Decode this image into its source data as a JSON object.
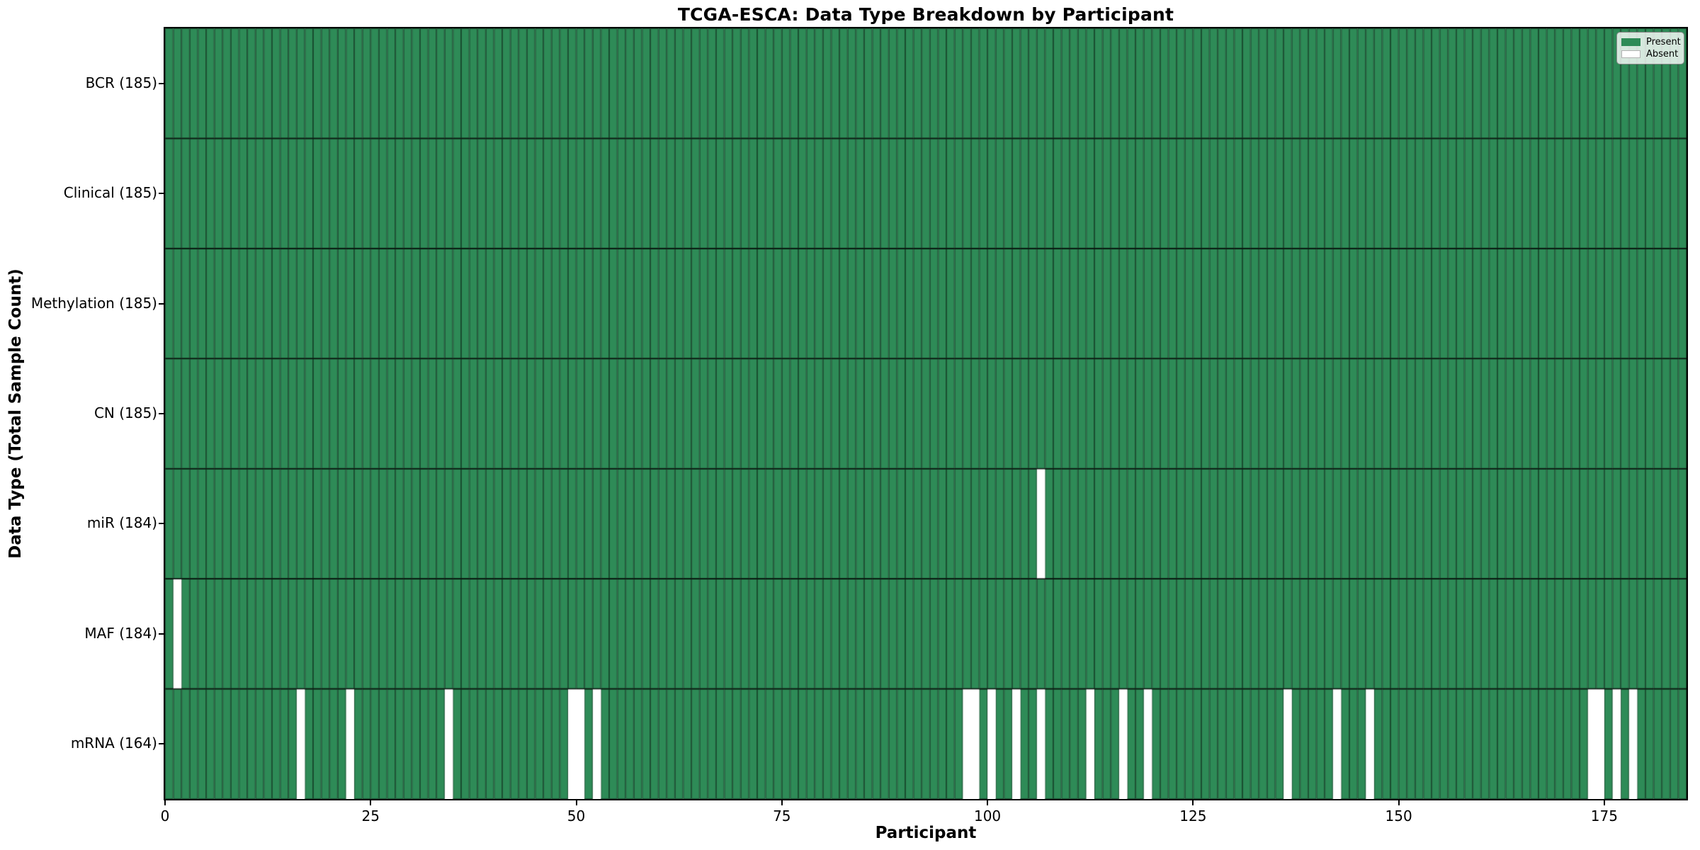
{
  "chart_data": {
    "type": "heatmap",
    "title": "TCGA-ESCA: Data Type Breakdown by Participant",
    "xlabel": "Participant",
    "ylabel": "Data Type (Total Sample Count)",
    "x_range": [
      0,
      185
    ],
    "n_participants": 185,
    "xticks": [
      0,
      25,
      50,
      75,
      100,
      125,
      150,
      175
    ],
    "grid": false,
    "legend_position": "upper right",
    "rows": [
      {
        "name": "BCR",
        "label": "BCR (185)",
        "present_count": 185,
        "absent_indices": []
      },
      {
        "name": "Clinical",
        "label": "Clinical (185)",
        "present_count": 185,
        "absent_indices": []
      },
      {
        "name": "Methylation",
        "label": "Methylation (185)",
        "present_count": 185,
        "absent_indices": []
      },
      {
        "name": "CN",
        "label": "CN (185)",
        "present_count": 185,
        "absent_indices": []
      },
      {
        "name": "miR",
        "label": "miR (184)",
        "present_count": 184,
        "absent_indices": [
          106
        ]
      },
      {
        "name": "MAF",
        "label": "MAF (184)",
        "present_count": 184,
        "absent_indices": [
          1
        ]
      },
      {
        "name": "mRNA",
        "label": "mRNA (164)",
        "present_count": 164,
        "absent_indices": [
          16,
          22,
          34,
          49,
          50,
          52,
          97,
          98,
          100,
          103,
          106,
          112,
          116,
          119,
          136,
          142,
          146,
          173,
          174,
          176,
          178
        ]
      }
    ],
    "legend": [
      {
        "label": "Present",
        "color": "#2e8b57"
      },
      {
        "label": "Absent",
        "color": "#ffffff"
      }
    ],
    "colors": {
      "present": "#2e8b57",
      "absent": "#ffffff",
      "cell_edge": "rgba(0,0,0,0.45)",
      "row_divider": "rgba(0,0,0,0.78)",
      "spine": "#000000",
      "background": "#ffffff",
      "text": "#000000"
    }
  }
}
